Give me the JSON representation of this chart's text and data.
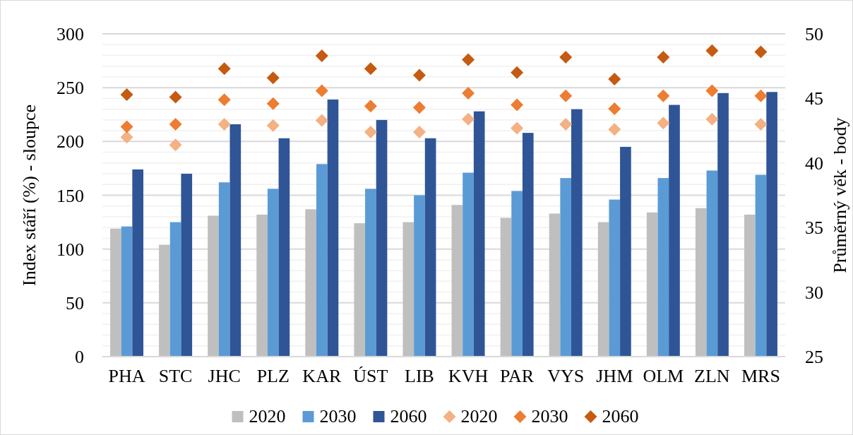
{
  "chart_data": {
    "type": "bar",
    "ylabel": "Index stáří (%) - sloupce",
    "y2label": "Průměrný věk - body",
    "categories": [
      "PHA",
      "STC",
      "JHC",
      "PLZ",
      "KAR",
      "ÚST",
      "LIB",
      "KVH",
      "PAR",
      "VYS",
      "JHM",
      "OLM",
      "ZLN",
      "MRS"
    ],
    "series": [
      {
        "name": "2020",
        "color": "#bfbfbf",
        "values": [
          119,
          104,
          131,
          132,
          137,
          124,
          125,
          141,
          129,
          133,
          125,
          134,
          138,
          132
        ]
      },
      {
        "name": "2030",
        "color": "#5b9bd5",
        "values": [
          121,
          125,
          162,
          156,
          179,
          156,
          150,
          171,
          154,
          166,
          146,
          166,
          173,
          169
        ]
      },
      {
        "name": "2060",
        "color": "#2f5597",
        "values": [
          174,
          170,
          216,
          203,
          239,
          220,
          203,
          228,
          208,
          230,
          195,
          234,
          245,
          246
        ]
      },
      {
        "name": "2020",
        "type": "scatter",
        "axis": "y2",
        "color": "#f4b183",
        "values": [
          42.0,
          41.4,
          43.0,
          42.9,
          43.3,
          42.4,
          42.4,
          43.4,
          42.7,
          43.0,
          42.6,
          43.1,
          43.4,
          43.0
        ]
      },
      {
        "name": "2030",
        "type": "scatter",
        "axis": "y2",
        "color": "#ed7d31",
        "values": [
          42.8,
          43.0,
          44.9,
          44.6,
          45.6,
          44.4,
          44.3,
          45.4,
          44.5,
          45.2,
          44.2,
          45.2,
          45.6,
          45.2
        ]
      },
      {
        "name": "2060",
        "type": "scatter",
        "axis": "y2",
        "color": "#c55a11",
        "values": [
          45.3,
          45.1,
          47.3,
          46.6,
          48.3,
          47.3,
          46.8,
          48.0,
          47.0,
          48.2,
          46.5,
          48.2,
          48.7,
          48.6
        ]
      }
    ],
    "ylim": [
      0,
      300
    ],
    "yticks": [
      0,
      {
        "value": 10,
        "label": null
      },
      {
        "value": 20,
        "label": null
      },
      {
        "value": 30,
        "label": null
      },
      {
        "value": 40,
        "label": null
      },
      50,
      {
        "value": 60,
        "label": null
      },
      {
        "value": 70,
        "label": null
      },
      {
        "value": 80,
        "label": null
      },
      {
        "value": 90,
        "label": null
      },
      100,
      {
        "value": 110,
        "label": null
      },
      {
        "value": 120,
        "label": null
      },
      {
        "value": 130,
        "label": null
      },
      {
        "value": 140,
        "label": null
      },
      150,
      {
        "value": 160,
        "label": null
      },
      {
        "value": 170,
        "label": null
      },
      {
        "value": 180,
        "label": null
      },
      {
        "value": 190,
        "label": null
      },
      200,
      {
        "value": 210,
        "label": null
      },
      {
        "value": 220,
        "label": null
      },
      {
        "value": 230,
        "label": null
      },
      {
        "value": 240,
        "label": null
      },
      250,
      {
        "value": 260,
        "label": null
      },
      {
        "value": 270,
        "label": null
      },
      {
        "value": 280,
        "label": null
      },
      {
        "value": 290,
        "label": null
      },
      300
    ],
    "y2lim": [
      25,
      50
    ],
    "y2ticks": [
      25,
      30,
      35,
      40,
      45,
      50
    ],
    "grid": "y",
    "legend": "bottom",
    "marker": "diamond"
  }
}
